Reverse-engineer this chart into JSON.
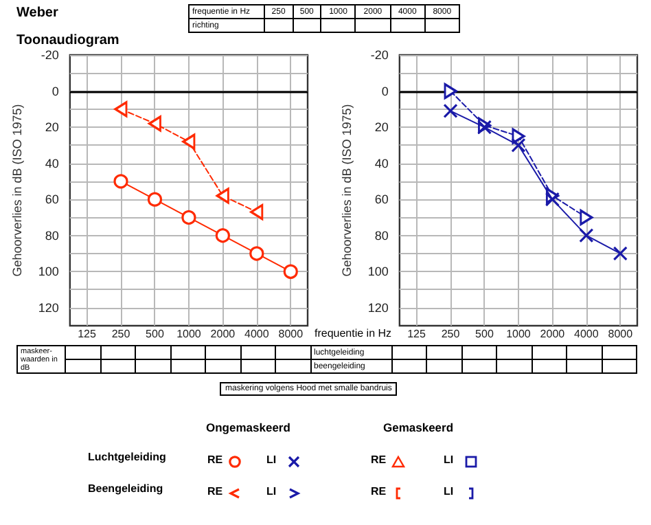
{
  "chart_data": [
    {
      "type": "line",
      "title": "Toonaudiogram",
      "xlabel": "frequentie in Hz",
      "ylabel": "Gehoorverlies in dB (ISO 1975)",
      "categories": [
        "125",
        "250",
        "500",
        "1000",
        "2000",
        "4000",
        "8000"
      ],
      "ylim": [
        130,
        -20
      ],
      "yticks": [
        -20,
        {
          "value": -10,
          "label": null
        },
        0,
        {
          "value": 10,
          "label": null
        },
        20,
        {
          "value": 30,
          "label": null
        },
        40,
        {
          "value": 50,
          "label": null
        },
        60,
        {
          "value": 70,
          "label": null
        },
        80,
        {
          "value": 90,
          "label": null
        },
        100,
        {
          "value": 110,
          "label": null
        },
        120
      ],
      "grid": true,
      "ref_lines": [
        {
          "axis": "y",
          "value": 0,
          "color": "#000000"
        }
      ],
      "series": [
        {
          "color": "#ff2a00",
          "marker": "circle",
          "line_style": "solid",
          "values": [
            null,
            50,
            60,
            70,
            80,
            90,
            100
          ]
        },
        {
          "color": "#ff2a00",
          "marker": "triangle",
          "line_style": "dashed",
          "values": [
            null,
            10,
            18,
            28,
            58,
            67,
            null
          ]
        }
      ],
      "annotations": [
        "Weber",
        "frequentie in Hz",
        "250",
        "500",
        "1000",
        "2000",
        "4000",
        "8000",
        "richting",
        "maskeer-waarden in dB",
        "luchtgeleiding",
        "beengeleiding",
        "maskering volgens Hood met smalle bandruis",
        "Ongemaskeerd",
        "Gemaskeerd",
        "Luchtgeleiding",
        "Beengeleiding",
        "RE",
        "LI",
        "RE",
        "LI",
        "RE",
        "LI",
        "RE",
        "LI"
      ]
    },
    {
      "type": "line",
      "ylabel": "Gehoorverlies in dB (ISO 1975)",
      "categories": [
        "125",
        "250",
        "500",
        "1000",
        "2000",
        "4000",
        "8000"
      ],
      "ylim": [
        130,
        -20
      ],
      "yticks": [
        -20,
        {
          "value": -10,
          "label": null
        },
        0,
        {
          "value": 10,
          "label": null
        },
        20,
        {
          "value": 30,
          "label": null
        },
        40,
        {
          "value": 50,
          "label": null
        },
        60,
        {
          "value": 70,
          "label": null
        },
        80,
        {
          "value": 90,
          "label": null
        },
        100,
        {
          "value": 110,
          "label": null
        },
        120
      ],
      "grid": true,
      "ref_lines": [
        {
          "axis": "y",
          "value": 0,
          "color": "#000000"
        }
      ],
      "series": [
        {
          "color": "#1a1aa8",
          "marker": "cross",
          "line_style": "solid",
          "values": [
            null,
            11,
            20,
            30,
            60,
            80,
            90
          ]
        },
        {
          "color": "#1a1aa8",
          "marker": "triangle",
          "line_style": "dashed",
          "values": [
            null,
            0,
            19,
            25,
            58,
            70,
            null
          ]
        }
      ]
    }
  ]
}
